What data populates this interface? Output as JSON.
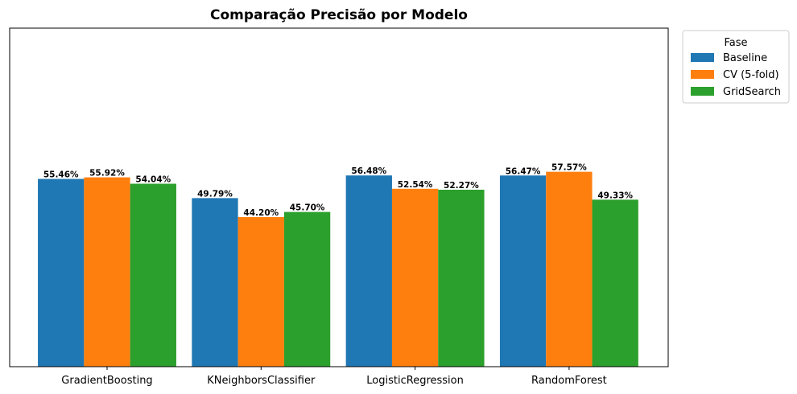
{
  "chart_data": {
    "type": "bar",
    "title": "Comparação Precisão por Modelo",
    "xlabel": "",
    "ylabel": "",
    "categories": [
      "GradientBoosting",
      "KNeighborsClassifier",
      "LogisticRegression",
      "RandomForest"
    ],
    "series": [
      {
        "name": "Baseline",
        "color": "#1f77b4",
        "values": [
          55.46,
          49.79,
          56.48,
          56.47
        ],
        "labels": [
          "55.46%",
          "49.79%",
          "56.48%",
          "56.47%"
        ]
      },
      {
        "name": "CV (5-fold)",
        "color": "#ff7f0e",
        "values": [
          55.92,
          44.2,
          52.54,
          57.57
        ],
        "labels": [
          "55.92%",
          "44.20%",
          "52.54%",
          "57.57%"
        ]
      },
      {
        "name": "GridSearch",
        "color": "#2ca02c",
        "values": [
          54.04,
          45.7,
          52.27,
          49.33
        ],
        "labels": [
          "54.04%",
          "45.70%",
          "52.27%",
          "49.33%"
        ]
      }
    ],
    "ylim": [
      0,
      100
    ],
    "y_axis_visible": false,
    "grid": false,
    "legend": {
      "title": "Fase",
      "placement": "outside-top-right"
    }
  }
}
